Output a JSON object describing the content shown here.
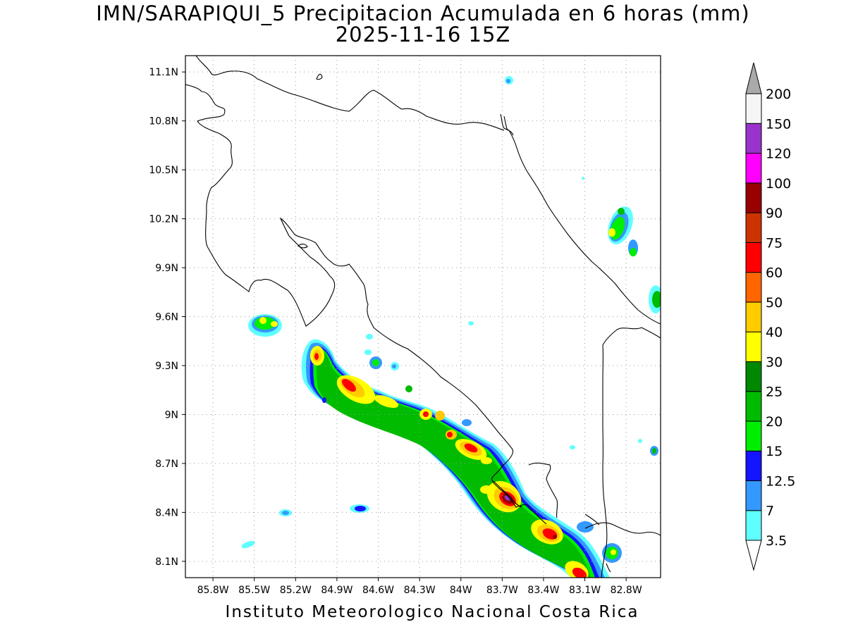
{
  "title": {
    "line1": "IMN/SARAPIQUI_5 Precipitacion Acumulada en 6 horas (mm)",
    "line2": "2025-11-16 15Z"
  },
  "map": {
    "lon_range": [
      -86.0,
      -82.55
    ],
    "lat_range": [
      8.0,
      11.2
    ],
    "x_axis_labels": [
      {
        "value": -85.8,
        "label": "85.8W"
      },
      {
        "value": -85.5,
        "label": "85.5W"
      },
      {
        "value": -85.2,
        "label": "85.2W"
      },
      {
        "value": -84.9,
        "label": "84.9W"
      },
      {
        "value": -84.6,
        "label": "84.6W"
      },
      {
        "value": -84.3,
        "label": "84.3W"
      },
      {
        "value": -84.0,
        "label": "84W"
      },
      {
        "value": -83.7,
        "label": "83.7W"
      },
      {
        "value": -83.4,
        "label": "83.4W"
      },
      {
        "value": -83.1,
        "label": "83.1W"
      },
      {
        "value": -82.8,
        "label": "82.8W"
      }
    ],
    "y_axis_labels": [
      {
        "value": 11.1,
        "label": "11.1N"
      },
      {
        "value": 10.8,
        "label": "10.8N"
      },
      {
        "value": 10.5,
        "label": "10.5N"
      },
      {
        "value": 10.2,
        "label": "10.2N"
      },
      {
        "value": 9.9,
        "label": "9.9N"
      },
      {
        "value": 9.6,
        "label": "9.6N"
      },
      {
        "value": 9.3,
        "label": "9.3N"
      },
      {
        "value": 9.0,
        "label": "9N"
      },
      {
        "value": 8.7,
        "label": "8.7N"
      },
      {
        "value": 8.4,
        "label": "8.4N"
      },
      {
        "value": 8.1,
        "label": "8.1N"
      }
    ],
    "grid": "dotted"
  },
  "legend": {
    "orientation": "vertical-right",
    "levels": [
      {
        "label": "3.5",
        "color": "#60ffff"
      },
      {
        "label": "7",
        "color": "#3399ff"
      },
      {
        "label": "12.5",
        "color": "#1414ff"
      },
      {
        "label": "15",
        "color": "#00ee00"
      },
      {
        "label": "20",
        "color": "#00bb00"
      },
      {
        "label": "25",
        "color": "#008800"
      },
      {
        "label": "30",
        "color": "#ffff00"
      },
      {
        "label": "40",
        "color": "#ffcc00"
      },
      {
        "label": "50",
        "color": "#ff6600"
      },
      {
        "label": "60",
        "color": "#ff0000"
      },
      {
        "label": "75",
        "color": "#cc3300"
      },
      {
        "label": "90",
        "color": "#990000"
      },
      {
        "label": "100",
        "color": "#ff00ff"
      },
      {
        "label": "120",
        "color": "#9933cc"
      },
      {
        "label": "150",
        "color": "#f5f5f5"
      },
      {
        "label": "200",
        "color": "#aaaaaa"
      }
    ]
  },
  "footer": "Instituto Meteorologico Nacional Costa Rica"
}
